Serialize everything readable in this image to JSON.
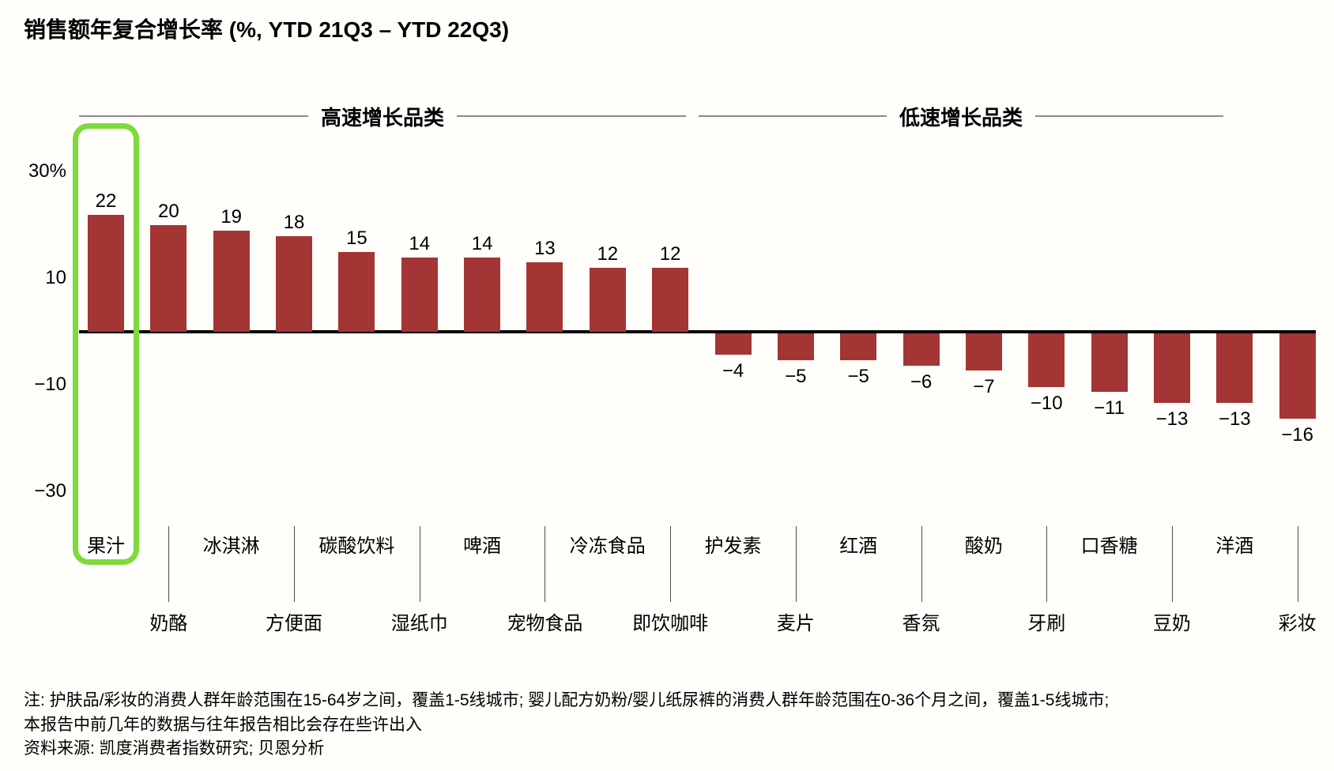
{
  "title": "销售额年复合增长率 (%, YTD 21Q3 – YTD 22Q3)",
  "groups": [
    {
      "label": "高速增长品类"
    },
    {
      "label": "低速增长品类"
    }
  ],
  "y_axis": {
    "ticks": [
      {
        "label": "30%",
        "value": 30
      },
      {
        "label": "10",
        "value": 10
      },
      {
        "label": "−10",
        "value": -10
      },
      {
        "label": "−30",
        "value": -30
      }
    ]
  },
  "chart_data": {
    "type": "bar",
    "title": "销售额年复合增长率 (%, YTD 21Q3 – YTD 22Q3)",
    "categories": [
      "果汁",
      "奶酪",
      "冰淇淋",
      "方便面",
      "碳酸饮料",
      "湿纸巾",
      "啤酒",
      "宠物食品",
      "冷冻食品",
      "即饮咖啡",
      "护发素",
      "麦片",
      "红酒",
      "香氛",
      "酸奶",
      "牙刷",
      "口香糖",
      "豆奶",
      "洋酒",
      "彩妆"
    ],
    "values": [
      22,
      20,
      19,
      18,
      15,
      14,
      14,
      13,
      12,
      12,
      -4,
      -5,
      -5,
      -6,
      -7,
      -10,
      -11,
      -13,
      -13,
      -16
    ],
    "group_membership": {
      "高速增长品类": [
        "果汁",
        "奶酪",
        "冰淇淋",
        "方便面",
        "碳酸饮料",
        "湿纸巾",
        "啤酒",
        "宠物食品",
        "冷冻食品",
        "即饮咖啡"
      ],
      "低速增长品类": [
        "护发素",
        "麦片",
        "红酒",
        "香氛",
        "酸奶",
        "牙刷",
        "口香糖",
        "豆奶",
        "洋酒",
        "彩妆"
      ]
    },
    "highlighted_category": "果汁",
    "ylim": [
      -30,
      30
    ],
    "grid": false,
    "legend": false,
    "bar_color": "#A33534",
    "highlight_color": "#7ED93A",
    "axis_color": "#000000",
    "header_line_color": "#8a8a8a"
  },
  "notes": [
    "注: 护肤品/彩妆的消费人群年龄范围在15-64岁之间，覆盖1-5线城市; 婴儿配方奶粉/婴儿纸尿裤的消费人群年龄范围在0-36个月之间，覆盖1-5线城市;",
    "本报告中前几年的数据与往年报告相比会存在些许出入",
    "资料来源: 凯度消费者指数研究; 贝恩分析"
  ]
}
